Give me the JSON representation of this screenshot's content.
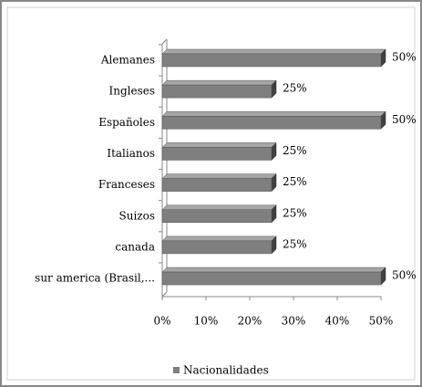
{
  "chart_data": {
    "type": "bar",
    "orientation": "horizontal",
    "categories": [
      "Alemanes",
      "Ingleses",
      "Españoles",
      "Italianos",
      "Franceses",
      "Suizos",
      "canada",
      "sur america (Brasil,..."
    ],
    "series": [
      {
        "name": "Nacionalidades",
        "color": "#7f7f7f",
        "values": [
          50,
          25,
          50,
          25,
          25,
          25,
          25,
          50
        ],
        "value_labels": [
          "50%",
          "25%",
          "50%",
          "25%",
          "25%",
          "25%",
          "25%",
          "50%"
        ]
      }
    ],
    "xlim": [
      0,
      50
    ],
    "xticks": [
      {
        "value": 0,
        "label": "0%"
      },
      {
        "value": 10,
        "label": "10%"
      },
      {
        "value": 20,
        "label": "20%"
      },
      {
        "value": 30,
        "label": "30%"
      },
      {
        "value": 40,
        "label": "40%"
      },
      {
        "value": 50,
        "label": "50%"
      }
    ],
    "legend": "bottom"
  }
}
